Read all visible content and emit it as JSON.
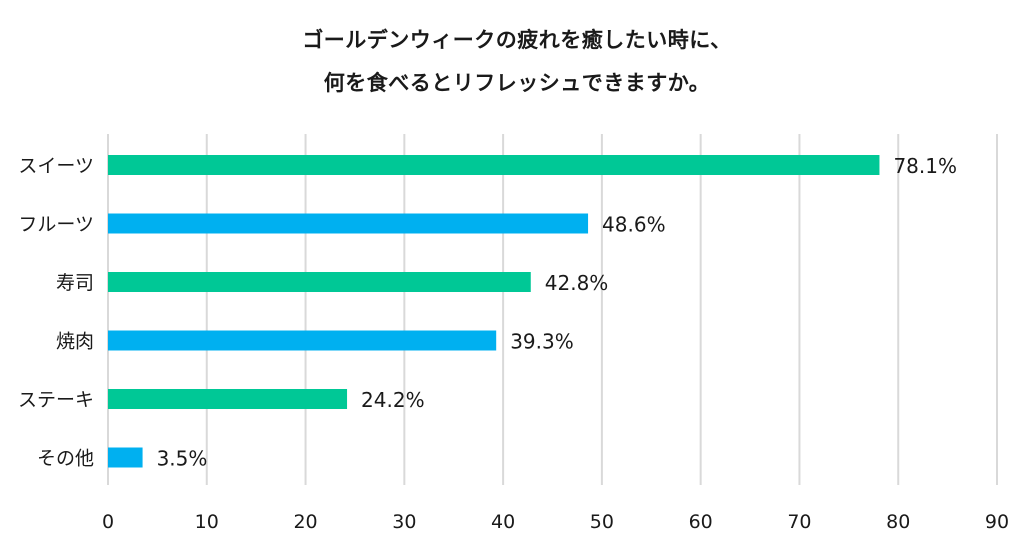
{
  "chart_data": {
    "type": "bar",
    "orientation": "horizontal",
    "title": [
      "ゴールデンウィークの疲れを癒したい時に、",
      "何を食べるとリフレッシュできますか。"
    ],
    "categories": [
      "スイーツ",
      "フルーツ",
      "寿司",
      "焼肉",
      "ステーキ",
      "その他"
    ],
    "values": [
      78.1,
      48.6,
      42.8,
      39.3,
      24.2,
      3.5
    ],
    "value_labels": [
      "78.1%",
      "48.6%",
      "42.8%",
      "39.3%",
      "24.2%",
      "3.5%"
    ],
    "bar_colors": [
      "#00c896",
      "#00b0f0",
      "#00c896",
      "#00b0f0",
      "#00c896",
      "#00b0f0"
    ],
    "xlim": [
      0,
      90
    ],
    "xticks": [
      0,
      10,
      20,
      30,
      40,
      50,
      60,
      70,
      80,
      90
    ],
    "grid": true,
    "gridline_color": "#d9d9d9"
  }
}
